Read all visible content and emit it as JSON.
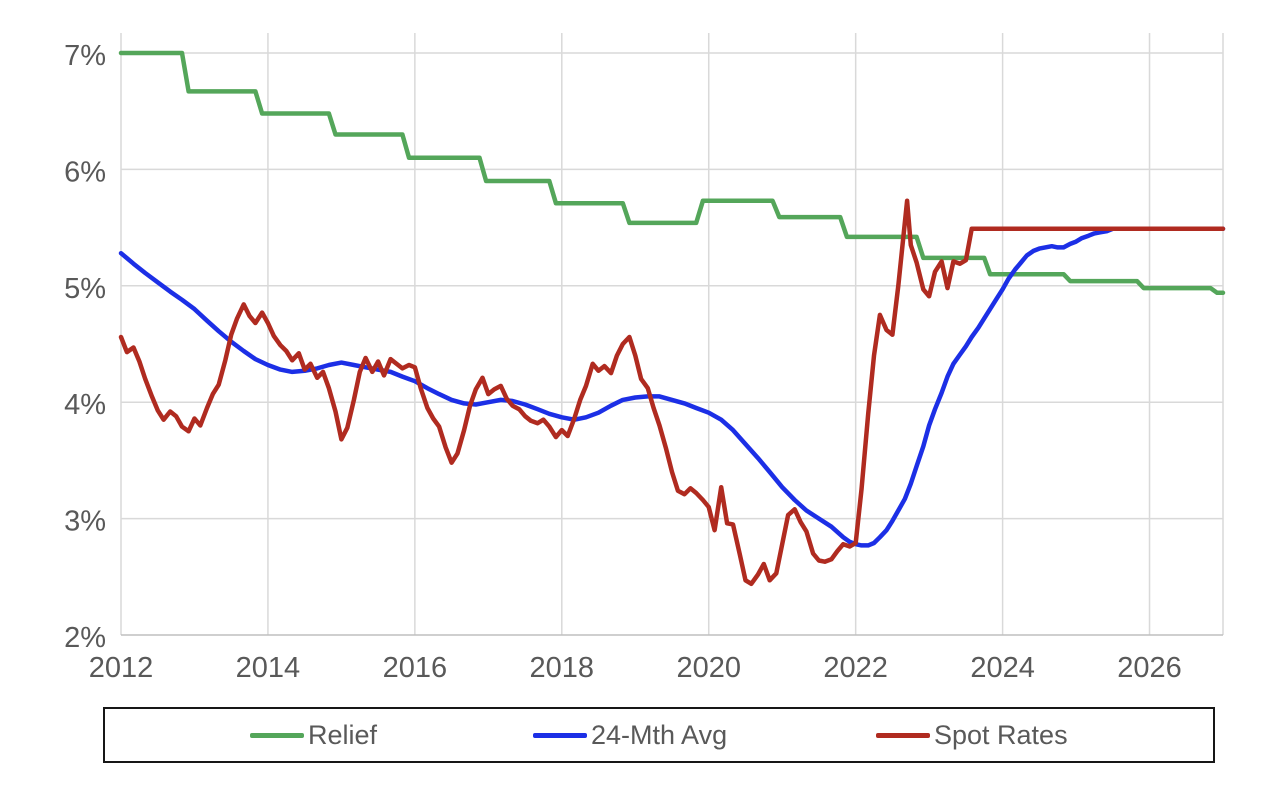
{
  "colors": {
    "background": "#FFFFFF",
    "gridline": "#D9D9D9",
    "axis_line": "#BFBFBF",
    "tick_label": "#595959",
    "legend_border": "#171717"
  },
  "chart_data": {
    "type": "line",
    "title": "",
    "xlabel": "",
    "ylabel": "",
    "x_axis": {
      "ticks": [
        2012,
        2014,
        2016,
        2018,
        2020,
        2022,
        2024,
        2026
      ],
      "range": [
        2012,
        2027
      ]
    },
    "y_axis": {
      "labels": [
        "7%",
        "6%",
        "5%",
        "4%",
        "3%",
        "2%"
      ],
      "tick_values": [
        7,
        6,
        5,
        4,
        3,
        2
      ],
      "range": [
        2,
        7.17
      ]
    },
    "legend": {
      "position": "bottom",
      "entries": [
        "Relief",
        "24-Mth Avg",
        "Spot Rates"
      ]
    },
    "series": [
      {
        "name": "Relief",
        "color": "#54A65A",
        "points": [
          [
            2012.0,
            7.0
          ],
          [
            2012.83,
            7.0
          ],
          [
            2012.92,
            6.67
          ],
          [
            2013.83,
            6.67
          ],
          [
            2013.92,
            6.48
          ],
          [
            2014.83,
            6.48
          ],
          [
            2014.92,
            6.3
          ],
          [
            2015.83,
            6.3
          ],
          [
            2015.92,
            6.1
          ],
          [
            2016.88,
            6.1
          ],
          [
            2016.97,
            5.9
          ],
          [
            2017.83,
            5.9
          ],
          [
            2017.92,
            5.71
          ],
          [
            2018.83,
            5.71
          ],
          [
            2018.92,
            5.54
          ],
          [
            2019.83,
            5.54
          ],
          [
            2019.92,
            5.73
          ],
          [
            2020.87,
            5.73
          ],
          [
            2020.96,
            5.59
          ],
          [
            2021.79,
            5.59
          ],
          [
            2021.88,
            5.42
          ],
          [
            2022.83,
            5.42
          ],
          [
            2022.92,
            5.24
          ],
          [
            2023.75,
            5.24
          ],
          [
            2023.83,
            5.1
          ],
          [
            2024.83,
            5.1
          ],
          [
            2024.92,
            5.04
          ],
          [
            2025.83,
            5.04
          ],
          [
            2025.92,
            4.98
          ],
          [
            2026.83,
            4.98
          ],
          [
            2026.92,
            4.94
          ],
          [
            2027.0,
            4.94
          ]
        ]
      },
      {
        "name": "24-Mth Avg",
        "color": "#1C2FE6",
        "points": [
          [
            2012.0,
            5.28
          ],
          [
            2012.17,
            5.19
          ],
          [
            2012.33,
            5.11
          ],
          [
            2012.5,
            5.03
          ],
          [
            2012.67,
            4.95
          ],
          [
            2012.83,
            4.88
          ],
          [
            2013.0,
            4.8
          ],
          [
            2013.17,
            4.7
          ],
          [
            2013.33,
            4.61
          ],
          [
            2013.5,
            4.52
          ],
          [
            2013.67,
            4.44
          ],
          [
            2013.83,
            4.37
          ],
          [
            2014.0,
            4.32
          ],
          [
            2014.17,
            4.28
          ],
          [
            2014.33,
            4.26
          ],
          [
            2014.5,
            4.27
          ],
          [
            2014.67,
            4.29
          ],
          [
            2014.83,
            4.32
          ],
          [
            2015.0,
            4.34
          ],
          [
            2015.17,
            4.32
          ],
          [
            2015.33,
            4.3
          ],
          [
            2015.5,
            4.28
          ],
          [
            2015.67,
            4.26
          ],
          [
            2015.83,
            4.22
          ],
          [
            2016.0,
            4.18
          ],
          [
            2016.17,
            4.12
          ],
          [
            2016.33,
            4.07
          ],
          [
            2016.5,
            4.02
          ],
          [
            2016.67,
            3.99
          ],
          [
            2016.83,
            3.98
          ],
          [
            2017.0,
            4.0
          ],
          [
            2017.17,
            4.02
          ],
          [
            2017.33,
            4.01
          ],
          [
            2017.5,
            3.98
          ],
          [
            2017.67,
            3.94
          ],
          [
            2017.83,
            3.9
          ],
          [
            2018.0,
            3.87
          ],
          [
            2018.17,
            3.85
          ],
          [
            2018.33,
            3.87
          ],
          [
            2018.5,
            3.91
          ],
          [
            2018.67,
            3.97
          ],
          [
            2018.83,
            4.02
          ],
          [
            2019.0,
            4.04
          ],
          [
            2019.17,
            4.05
          ],
          [
            2019.33,
            4.05
          ],
          [
            2019.5,
            4.02
          ],
          [
            2019.67,
            3.99
          ],
          [
            2019.83,
            3.95
          ],
          [
            2020.0,
            3.91
          ],
          [
            2020.17,
            3.85
          ],
          [
            2020.33,
            3.76
          ],
          [
            2020.5,
            3.64
          ],
          [
            2020.67,
            3.52
          ],
          [
            2020.83,
            3.4
          ],
          [
            2021.0,
            3.27
          ],
          [
            2021.17,
            3.16
          ],
          [
            2021.33,
            3.07
          ],
          [
            2021.5,
            3.0
          ],
          [
            2021.67,
            2.93
          ],
          [
            2021.83,
            2.84
          ],
          [
            2021.92,
            2.8
          ],
          [
            2022.0,
            2.78
          ],
          [
            2022.08,
            2.77
          ],
          [
            2022.17,
            2.77
          ],
          [
            2022.25,
            2.79
          ],
          [
            2022.33,
            2.84
          ],
          [
            2022.42,
            2.9
          ],
          [
            2022.5,
            2.98
          ],
          [
            2022.58,
            3.07
          ],
          [
            2022.67,
            3.17
          ],
          [
            2022.75,
            3.3
          ],
          [
            2022.83,
            3.45
          ],
          [
            2022.92,
            3.62
          ],
          [
            2023.0,
            3.8
          ],
          [
            2023.08,
            3.94
          ],
          [
            2023.17,
            4.08
          ],
          [
            2023.25,
            4.22
          ],
          [
            2023.33,
            4.33
          ],
          [
            2023.42,
            4.41
          ],
          [
            2023.5,
            4.48
          ],
          [
            2023.58,
            4.56
          ],
          [
            2023.67,
            4.64
          ],
          [
            2023.75,
            4.72
          ],
          [
            2023.83,
            4.8
          ],
          [
            2023.92,
            4.89
          ],
          [
            2024.0,
            4.97
          ],
          [
            2024.08,
            5.06
          ],
          [
            2024.17,
            5.14
          ],
          [
            2024.25,
            5.2
          ],
          [
            2024.33,
            5.26
          ],
          [
            2024.42,
            5.3
          ],
          [
            2024.5,
            5.32
          ],
          [
            2024.58,
            5.33
          ],
          [
            2024.67,
            5.34
          ],
          [
            2024.75,
            5.33
          ],
          [
            2024.83,
            5.33
          ],
          [
            2024.92,
            5.36
          ],
          [
            2025.0,
            5.38
          ],
          [
            2025.08,
            5.41
          ],
          [
            2025.17,
            5.43
          ],
          [
            2025.25,
            5.45
          ],
          [
            2025.33,
            5.46
          ],
          [
            2025.42,
            5.47
          ],
          [
            2025.5,
            5.49
          ],
          [
            2026.0,
            5.49
          ],
          [
            2026.5,
            5.49
          ],
          [
            2027.0,
            5.49
          ]
        ]
      },
      {
        "name": "Spot Rates",
        "color": "#B02B20",
        "points": [
          [
            2012.0,
            4.56
          ],
          [
            2012.08,
            4.43
          ],
          [
            2012.17,
            4.47
          ],
          [
            2012.25,
            4.35
          ],
          [
            2012.33,
            4.2
          ],
          [
            2012.42,
            4.05
          ],
          [
            2012.5,
            3.93
          ],
          [
            2012.58,
            3.85
          ],
          [
            2012.67,
            3.92
          ],
          [
            2012.75,
            3.88
          ],
          [
            2012.83,
            3.79
          ],
          [
            2012.92,
            3.75
          ],
          [
            2013.0,
            3.86
          ],
          [
            2013.08,
            3.8
          ],
          [
            2013.17,
            3.95
          ],
          [
            2013.25,
            4.07
          ],
          [
            2013.33,
            4.15
          ],
          [
            2013.42,
            4.36
          ],
          [
            2013.5,
            4.58
          ],
          [
            2013.58,
            4.72
          ],
          [
            2013.67,
            4.84
          ],
          [
            2013.75,
            4.74
          ],
          [
            2013.83,
            4.68
          ],
          [
            2013.92,
            4.77
          ],
          [
            2014.0,
            4.68
          ],
          [
            2014.08,
            4.57
          ],
          [
            2014.17,
            4.49
          ],
          [
            2014.25,
            4.44
          ],
          [
            2014.33,
            4.36
          ],
          [
            2014.42,
            4.42
          ],
          [
            2014.5,
            4.28
          ],
          [
            2014.58,
            4.33
          ],
          [
            2014.67,
            4.21
          ],
          [
            2014.75,
            4.26
          ],
          [
            2014.83,
            4.12
          ],
          [
            2014.92,
            3.92
          ],
          [
            2015.0,
            3.68
          ],
          [
            2015.08,
            3.78
          ],
          [
            2015.17,
            4.02
          ],
          [
            2015.25,
            4.26
          ],
          [
            2015.33,
            4.38
          ],
          [
            2015.42,
            4.26
          ],
          [
            2015.5,
            4.35
          ],
          [
            2015.58,
            4.23
          ],
          [
            2015.67,
            4.37
          ],
          [
            2015.75,
            4.33
          ],
          [
            2015.83,
            4.29
          ],
          [
            2015.92,
            4.32
          ],
          [
            2016.0,
            4.3
          ],
          [
            2016.08,
            4.12
          ],
          [
            2016.17,
            3.95
          ],
          [
            2016.25,
            3.86
          ],
          [
            2016.33,
            3.79
          ],
          [
            2016.42,
            3.61
          ],
          [
            2016.5,
            3.48
          ],
          [
            2016.58,
            3.56
          ],
          [
            2016.67,
            3.76
          ],
          [
            2016.75,
            3.97
          ],
          [
            2016.83,
            4.11
          ],
          [
            2016.92,
            4.21
          ],
          [
            2017.0,
            4.07
          ],
          [
            2017.08,
            4.11
          ],
          [
            2017.17,
            4.14
          ],
          [
            2017.25,
            4.03
          ],
          [
            2017.33,
            3.97
          ],
          [
            2017.42,
            3.94
          ],
          [
            2017.5,
            3.88
          ],
          [
            2017.58,
            3.84
          ],
          [
            2017.67,
            3.82
          ],
          [
            2017.75,
            3.85
          ],
          [
            2017.83,
            3.79
          ],
          [
            2017.92,
            3.7
          ],
          [
            2018.0,
            3.76
          ],
          [
            2018.08,
            3.71
          ],
          [
            2018.17,
            3.86
          ],
          [
            2018.25,
            4.02
          ],
          [
            2018.33,
            4.14
          ],
          [
            2018.42,
            4.33
          ],
          [
            2018.5,
            4.27
          ],
          [
            2018.58,
            4.31
          ],
          [
            2018.67,
            4.25
          ],
          [
            2018.75,
            4.4
          ],
          [
            2018.83,
            4.5
          ],
          [
            2018.92,
            4.56
          ],
          [
            2019.0,
            4.4
          ],
          [
            2019.08,
            4.2
          ],
          [
            2019.17,
            4.12
          ],
          [
            2019.25,
            3.95
          ],
          [
            2019.33,
            3.8
          ],
          [
            2019.42,
            3.6
          ],
          [
            2019.5,
            3.4
          ],
          [
            2019.58,
            3.24
          ],
          [
            2019.67,
            3.21
          ],
          [
            2019.75,
            3.26
          ],
          [
            2019.83,
            3.22
          ],
          [
            2019.92,
            3.16
          ],
          [
            2020.0,
            3.1
          ],
          [
            2020.08,
            2.9
          ],
          [
            2020.17,
            3.27
          ],
          [
            2020.25,
            2.96
          ],
          [
            2020.33,
            2.95
          ],
          [
            2020.42,
            2.7
          ],
          [
            2020.5,
            2.47
          ],
          [
            2020.58,
            2.44
          ],
          [
            2020.67,
            2.52
          ],
          [
            2020.75,
            2.61
          ],
          [
            2020.83,
            2.47
          ],
          [
            2020.92,
            2.53
          ],
          [
            2021.0,
            2.78
          ],
          [
            2021.08,
            3.03
          ],
          [
            2021.17,
            3.08
          ],
          [
            2021.25,
            2.97
          ],
          [
            2021.33,
            2.89
          ],
          [
            2021.42,
            2.7
          ],
          [
            2021.5,
            2.64
          ],
          [
            2021.58,
            2.63
          ],
          [
            2021.67,
            2.65
          ],
          [
            2021.75,
            2.72
          ],
          [
            2021.83,
            2.78
          ],
          [
            2021.92,
            2.76
          ],
          [
            2022.0,
            2.79
          ],
          [
            2022.08,
            3.25
          ],
          [
            2022.17,
            3.9
          ],
          [
            2022.25,
            4.4
          ],
          [
            2022.33,
            4.75
          ],
          [
            2022.42,
            4.62
          ],
          [
            2022.5,
            4.58
          ],
          [
            2022.58,
            5.0
          ],
          [
            2022.7,
            5.73
          ],
          [
            2022.75,
            5.35
          ],
          [
            2022.83,
            5.2
          ],
          [
            2022.92,
            4.97
          ],
          [
            2023.0,
            4.91
          ],
          [
            2023.08,
            5.12
          ],
          [
            2023.17,
            5.21
          ],
          [
            2023.25,
            4.98
          ],
          [
            2023.33,
            5.21
          ],
          [
            2023.42,
            5.19
          ],
          [
            2023.5,
            5.22
          ],
          [
            2023.58,
            5.49
          ],
          [
            2024.0,
            5.49
          ],
          [
            2025.0,
            5.49
          ],
          [
            2026.0,
            5.49
          ],
          [
            2027.0,
            5.49
          ]
        ]
      }
    ]
  }
}
